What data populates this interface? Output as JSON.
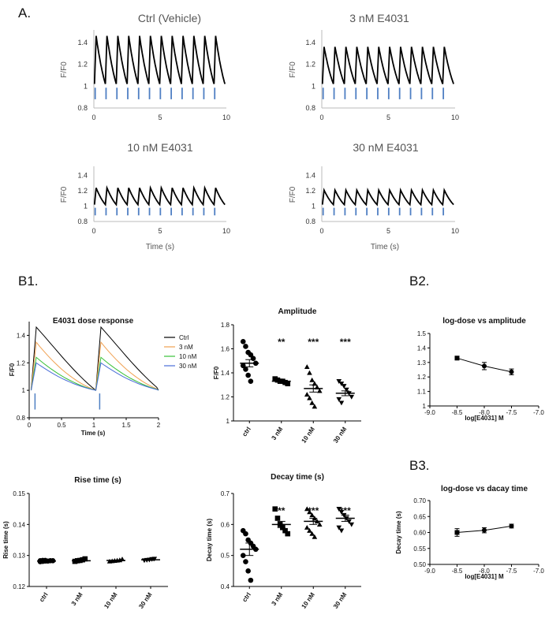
{
  "panels": {
    "A": "A.",
    "B1": "B1.",
    "B2": "B2.",
    "B3": "B3."
  },
  "chart_data": [
    {
      "id": "a1",
      "type": "line",
      "title": "Ctrl  (Vehicle)",
      "ylabel": "F/F0",
      "xlabel": "",
      "xlim": [
        0,
        10
      ],
      "ylim": [
        0.8,
        1.5
      ],
      "yticks": [
        0.8,
        1,
        1.2,
        1.4
      ],
      "xticks": [
        0,
        5,
        10
      ],
      "peak": 1.46,
      "baseline": 1.02,
      "beats": 12,
      "stim_color": "#4f7fc3"
    },
    {
      "id": "a2",
      "type": "line",
      "title": "3 nM E4031",
      "ylabel": "F/F0",
      "xlabel": "",
      "xlim": [
        0,
        10
      ],
      "ylim": [
        0.8,
        1.5
      ],
      "yticks": [
        0.8,
        1,
        1.2,
        1.4
      ],
      "xticks": [
        0,
        5,
        10
      ],
      "peak": 1.36,
      "baseline": 1.02,
      "beats": 12,
      "stim_color": "#4f7fc3"
    },
    {
      "id": "a3",
      "type": "line",
      "title": "10 nM E4031",
      "ylabel": "F/F0",
      "xlabel": "Time (s)",
      "xlim": [
        0,
        10
      ],
      "ylim": [
        0.8,
        1.5
      ],
      "yticks": [
        0.8,
        1,
        1.2,
        1.4
      ],
      "xticks": [
        0,
        5,
        10
      ],
      "peak": 1.24,
      "baseline": 1.02,
      "beats": 12,
      "stim_color": "#4f7fc3"
    },
    {
      "id": "a4",
      "type": "line",
      "title": "30 nM E4031",
      "ylabel": "F/F0",
      "xlabel": "Time (s)",
      "xlim": [
        0,
        10
      ],
      "ylim": [
        0.8,
        1.5
      ],
      "yticks": [
        0.8,
        1,
        1.2,
        1.4
      ],
      "xticks": [
        0,
        5,
        10
      ],
      "peak": 1.21,
      "baseline": 1.02,
      "beats": 12,
      "stim_color": "#4f7fc3"
    },
    {
      "id": "b1",
      "type": "line",
      "title": "E4031 dose response",
      "ylabel": "F/F0",
      "xlabel": "Time (s)",
      "xlim": [
        0,
        2
      ],
      "ylim": [
        0.8,
        1.5
      ],
      "yticks": [
        0.8,
        1.0,
        1.2,
        1.4
      ],
      "xticks": [
        0,
        0.5,
        1,
        1.5,
        2
      ],
      "series": [
        {
          "name": "Ctrl",
          "color": "#000000",
          "peak": 1.46
        },
        {
          "name": "3 nM",
          "color": "#f0a050",
          "peak": 1.35
        },
        {
          "name": "10 nM",
          "color": "#38c038",
          "peak": 1.24
        },
        {
          "name": "30 nM",
          "color": "#4a6ed8",
          "peak": 1.2
        }
      ],
      "stim_color": "#4f7fc3"
    },
    {
      "id": "amp",
      "type": "scatter",
      "title": "Amplitude",
      "ylabel": "F/F0",
      "xlabel": "",
      "ylim": [
        1.0,
        1.8
      ],
      "yticks": [
        1.0,
        1.2,
        1.4,
        1.6,
        1.8
      ],
      "categories": [
        "ctrl",
        "3 nM",
        "10 nM",
        "30 nM"
      ],
      "markers": [
        "circle",
        "square",
        "triangle",
        "tri-down"
      ],
      "significance": [
        "",
        "**",
        "***",
        "***"
      ],
      "means": [
        1.48,
        1.33,
        1.27,
        1.23
      ],
      "sems": [
        0.03,
        0.01,
        0.03,
        0.02
      ],
      "points": [
        [
          1.66,
          1.62,
          1.57,
          1.55,
          1.52,
          1.48,
          1.46,
          1.43,
          1.38,
          1.33
        ],
        [
          1.35,
          1.34,
          1.33,
          1.33,
          1.32,
          1.31
        ],
        [
          1.45,
          1.4,
          1.34,
          1.31,
          1.28,
          1.25,
          1.22,
          1.19,
          1.15,
          1.12
        ],
        [
          1.33,
          1.31,
          1.29,
          1.26,
          1.23,
          1.2,
          1.18,
          1.15
        ]
      ]
    },
    {
      "id": "b2",
      "type": "line",
      "title": "log-dose vs amplitude",
      "ylabel": "",
      "xlabel": "log[E4031] M",
      "xlim": [
        -9,
        -7
      ],
      "ylim": [
        1.0,
        1.5
      ],
      "yticks": [
        1.0,
        1.1,
        1.2,
        1.3,
        1.4,
        1.5
      ],
      "xticks": [
        "-9.0",
        "-8.5",
        "-8.0",
        "-7.5",
        "-7.0"
      ],
      "x": [
        -8.5,
        -8.0,
        -7.5
      ],
      "y": [
        1.33,
        1.275,
        1.235
      ],
      "err": [
        0.008,
        0.025,
        0.02
      ]
    },
    {
      "id": "rise",
      "type": "scatter",
      "title": "Rise time (s)",
      "ylabel": "Rise time (s)",
      "xlabel": "",
      "ylim": [
        0.12,
        0.15
      ],
      "yticks": [
        0.12,
        0.13,
        0.14,
        0.15
      ],
      "categories": [
        "ctrl",
        "3 nM",
        "10 nM",
        "30 nM"
      ],
      "markers": [
        "circle",
        "square",
        "triangle",
        "tri-down"
      ],
      "significance": [
        "",
        "",
        "",
        ""
      ],
      "means": [
        0.1282,
        0.1283,
        0.1284,
        0.1286
      ],
      "sems": [
        0.0001,
        0.0002,
        0.0001,
        0.0002
      ],
      "points": [
        [
          0.128,
          0.1281,
          0.1282,
          0.1282,
          0.1283,
          0.1283,
          0.1283,
          0.1284,
          0.1284
        ],
        [
          0.1281,
          0.1283,
          0.1284,
          0.1286,
          0.1289
        ],
        [
          0.1281,
          0.1282,
          0.1283,
          0.1284,
          0.1285,
          0.1288
        ],
        [
          0.1284,
          0.1285,
          0.1286,
          0.1288,
          0.1289
        ]
      ]
    },
    {
      "id": "decay",
      "type": "scatter",
      "title": "Decay time (s)",
      "ylabel": "Decay time (s)",
      "xlabel": "",
      "ylim": [
        0.4,
        0.7
      ],
      "yticks": [
        0.4,
        0.5,
        0.6,
        0.7
      ],
      "categories": [
        "ctrl",
        "3 nM",
        "10 nM",
        "30 nM"
      ],
      "markers": [
        "circle",
        "square",
        "triangle",
        "tri-down"
      ],
      "significance": [
        "",
        "**",
        "***",
        "***"
      ],
      "means": [
        0.52,
        0.6,
        0.61,
        0.62
      ],
      "sems": [
        0.02,
        0.01,
        0.01,
        0.01
      ],
      "points": [
        [
          0.58,
          0.57,
          0.55,
          0.54,
          0.53,
          0.52,
          0.5,
          0.48,
          0.45,
          0.42
        ],
        [
          0.65,
          0.62,
          0.6,
          0.59,
          0.58,
          0.57
        ],
        [
          0.65,
          0.64,
          0.63,
          0.62,
          0.61,
          0.6,
          0.59,
          0.58,
          0.57,
          0.56
        ],
        [
          0.65,
          0.64,
          0.63,
          0.62,
          0.61,
          0.6,
          0.59,
          0.58
        ]
      ]
    },
    {
      "id": "b3",
      "type": "line",
      "title": "log-dose vs dacay time",
      "ylabel": "Decay time (s)",
      "xlabel": "log[E4031] M",
      "xlim": [
        -9,
        -7
      ],
      "ylim": [
        0.5,
        0.7
      ],
      "yticks": [
        "0.50",
        "0.55",
        "0.60",
        "0.65",
        "0.70"
      ],
      "xticks": [
        "-9.0",
        "-8.5",
        "-8.0",
        "-7.5",
        "-7.0"
      ],
      "x": [
        -8.5,
        -8.0,
        -7.5
      ],
      "y": [
        0.6,
        0.607,
        0.62
      ],
      "err": [
        0.012,
        0.008,
        0.006
      ]
    }
  ]
}
